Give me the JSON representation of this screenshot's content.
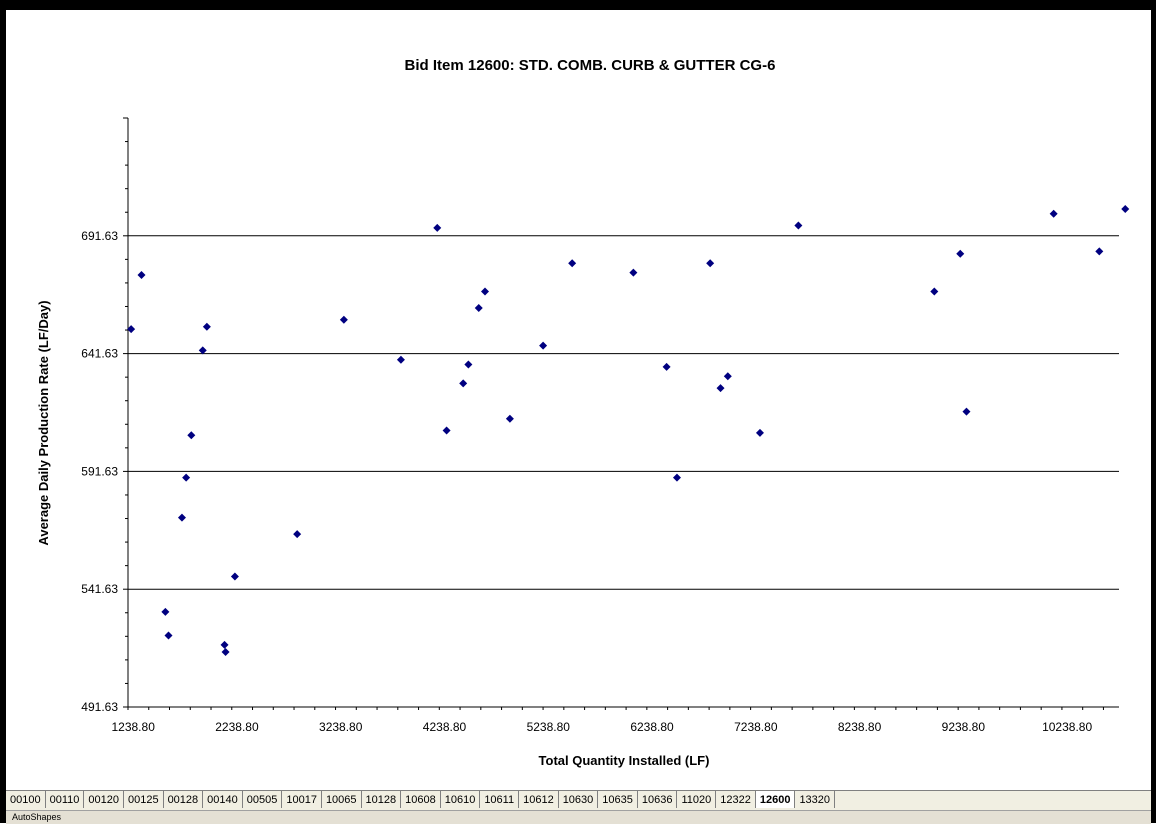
{
  "chart_data": {
    "type": "scatter",
    "title": "Bid Item 12600: STD. COMB. CURB & GUTTER CG-6",
    "xlabel": "Total Quantity Installed (LF)",
    "ylabel": "Average Daily Production Rate (LF/Day)",
    "xlim": [
      1188.8,
      10738.8
    ],
    "ylim": [
      491.63,
      741.63
    ],
    "x_ticks": [
      "1238.80",
      "2238.80",
      "3238.80",
      "4238.80",
      "5238.80",
      "6238.80",
      "7238.80",
      "8238.80",
      "9238.80",
      "10238.80"
    ],
    "y_ticks": [
      "491.63",
      "541.63",
      "591.63",
      "641.63",
      "691.63"
    ],
    "grid": "horizontal",
    "legend": "none",
    "marker_color": "#000080",
    "series": [
      {
        "points": [
          [
            1219,
            652
          ],
          [
            1319,
            675
          ],
          [
            1549,
            532
          ],
          [
            1579,
            522
          ],
          [
            1709,
            572
          ],
          [
            1749,
            589
          ],
          [
            1799,
            607
          ],
          [
            1909,
            643
          ],
          [
            1949,
            653
          ],
          [
            2119,
            518
          ],
          [
            2129,
            515
          ],
          [
            2219,
            547
          ],
          [
            2819,
            565
          ],
          [
            3269,
            656
          ],
          [
            3819,
            639
          ],
          [
            4169,
            695
          ],
          [
            4259,
            609
          ],
          [
            4419,
            629
          ],
          [
            4469,
            637
          ],
          [
            4569,
            661
          ],
          [
            4629,
            668
          ],
          [
            4869,
            614
          ],
          [
            5189,
            645
          ],
          [
            5469,
            680
          ],
          [
            6059,
            676
          ],
          [
            6379,
            636
          ],
          [
            6479,
            589
          ],
          [
            6799,
            680
          ],
          [
            6899,
            627
          ],
          [
            6969,
            632
          ],
          [
            7279,
            608
          ],
          [
            7649,
            696
          ],
          [
            8959,
            668
          ],
          [
            9209,
            684
          ],
          [
            9269,
            617
          ],
          [
            10109,
            701
          ],
          [
            10549,
            685
          ],
          [
            10799,
            703
          ]
        ]
      }
    ]
  },
  "sheet_tabs": [
    "00100",
    "00110",
    "00120",
    "00125",
    "00128",
    "00140",
    "00505",
    "10017",
    "10065",
    "10128",
    "10608",
    "10610",
    "10611",
    "10612",
    "10630",
    "10635",
    "10636",
    "11020",
    "12322",
    "12600",
    "13320"
  ],
  "active_tab": "12600",
  "drawing_toolbar": {
    "autoshapes_label": "AutoShapes"
  }
}
